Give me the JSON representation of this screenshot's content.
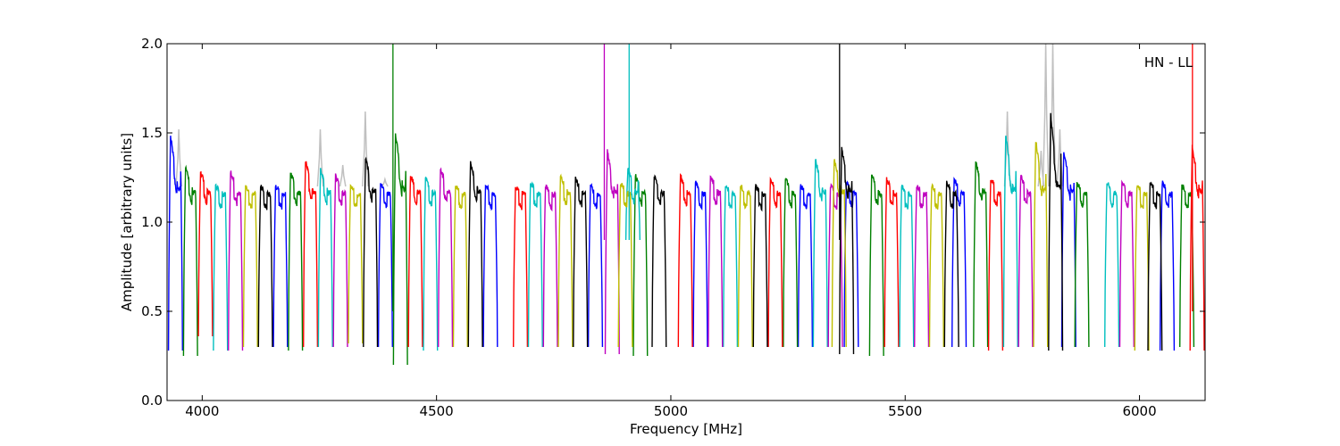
{
  "chart_data": {
    "type": "line",
    "title": "",
    "annotation": "HN - LL",
    "xlabel": "Frequency [MHz]",
    "ylabel": "Amplitude [arbitrary units]",
    "xlim": [
      3925,
      6140
    ],
    "ylim": [
      0.0,
      2.0
    ],
    "xticks": [
      4000,
      4500,
      5000,
      5500,
      6000
    ],
    "xtick_labels": [
      "4000",
      "4500",
      "5000",
      "5500",
      "6000"
    ],
    "yticks": [
      0.0,
      0.5,
      1.0,
      1.5,
      2.0
    ],
    "ytick_labels": [
      "0.0",
      "0.5",
      "1.0",
      "1.5",
      "2.0"
    ],
    "grid": false,
    "color_cycle": [
      "#0000ff",
      "#008000",
      "#ff0000",
      "#00bfbf",
      "#bf00bf",
      "#bfbf00",
      "#000000"
    ],
    "background_trace_color": "#c0c0c0",
    "channel_spacing_mhz": 32,
    "channel_width_mhz": 30,
    "series": [
      {
        "color": "#0000ff",
        "channels": [
          [
            3928,
            3958,
            0.28,
            1.48
          ],
          [
            4152,
            4182,
            0.3,
            1.2
          ],
          [
            4376,
            4406,
            0.3,
            1.22
          ],
          [
            4600,
            4630,
            0.3,
            1.2
          ],
          [
            4824,
            4854,
            0.3,
            1.2
          ],
          [
            5048,
            5078,
            0.3,
            1.22
          ],
          [
            5272,
            5302,
            0.3,
            1.2
          ],
          [
            5370,
            5400,
            0.3,
            1.22
          ],
          [
            5600,
            5630,
            0.3,
            1.24
          ],
          [
            5834,
            5864,
            0.3,
            1.4
          ],
          [
            6044,
            6074,
            0.28,
            1.22
          ]
        ]
      },
      {
        "color": "#008000",
        "channels": [
          [
            3960,
            3990,
            0.25,
            1.3
          ],
          [
            4184,
            4214,
            0.28,
            1.28
          ],
          [
            4408,
            4438,
            0.2,
            1.5
          ],
          [
            4920,
            4950,
            0.25,
            1.26
          ],
          [
            5240,
            5270,
            0.3,
            1.24
          ],
          [
            5424,
            5454,
            0.25,
            1.26
          ],
          [
            5646,
            5676,
            0.3,
            1.34
          ],
          [
            5862,
            5892,
            0.3,
            1.22
          ],
          [
            6086,
            6116,
            0.3,
            1.2
          ]
        ]
      },
      {
        "color": "#ff0000",
        "channels": [
          [
            3992,
            4022,
            0.36,
            1.28
          ],
          [
            4216,
            4246,
            0.3,
            1.34
          ],
          [
            4440,
            4470,
            0.3,
            1.26
          ],
          [
            4664,
            4694,
            0.3,
            1.2
          ],
          [
            5016,
            5046,
            0.3,
            1.26
          ],
          [
            5208,
            5238,
            0.3,
            1.24
          ],
          [
            5456,
            5486,
            0.3,
            1.24
          ],
          [
            5678,
            5708,
            0.28,
            1.25
          ],
          [
            6108,
            6138,
            0.28,
            1.42
          ]
        ]
      },
      {
        "color": "#00bfbf",
        "channels": [
          [
            4024,
            4054,
            0.28,
            1.2
          ],
          [
            4248,
            4278,
            0.3,
            1.3
          ],
          [
            4472,
            4502,
            0.28,
            1.24
          ],
          [
            4696,
            4726,
            0.3,
            1.22
          ],
          [
            4904,
            4934,
            0.9,
            1.3
          ],
          [
            5112,
            5142,
            0.3,
            1.2
          ],
          [
            5304,
            5334,
            0.3,
            1.35
          ],
          [
            5488,
            5518,
            0.3,
            1.2
          ],
          [
            5710,
            5740,
            0.3,
            1.48
          ],
          [
            5926,
            5956,
            0.3,
            1.22
          ]
        ]
      },
      {
        "color": "#bf00bf",
        "channels": [
          [
            4056,
            4086,
            0.28,
            1.28
          ],
          [
            4280,
            4310,
            0.3,
            1.26
          ],
          [
            4504,
            4534,
            0.3,
            1.3
          ],
          [
            4728,
            4758,
            0.3,
            1.2
          ],
          [
            4860,
            4890,
            0.26,
            1.4
          ],
          [
            5080,
            5110,
            0.3,
            1.26
          ],
          [
            5336,
            5366,
            0.3,
            1.2
          ],
          [
            5520,
            5550,
            0.3,
            1.2
          ],
          [
            5742,
            5772,
            0.3,
            1.26
          ],
          [
            5958,
            5988,
            0.3,
            1.22
          ]
        ]
      },
      {
        "color": "#bfbf00",
        "channels": [
          [
            4088,
            4118,
            0.3,
            1.2
          ],
          [
            4312,
            4342,
            0.32,
            1.2
          ],
          [
            4536,
            4566,
            0.3,
            1.2
          ],
          [
            4760,
            4790,
            0.3,
            1.26
          ],
          [
            4888,
            4918,
            0.3,
            1.22
          ],
          [
            5144,
            5174,
            0.3,
            1.2
          ],
          [
            5344,
            5374,
            0.3,
            1.35
          ],
          [
            5552,
            5582,
            0.3,
            1.2
          ],
          [
            5774,
            5804,
            0.3,
            1.46
          ],
          [
            5990,
            6020,
            0.28,
            1.2
          ]
        ]
      },
      {
        "color": "#000000",
        "channels": [
          [
            4120,
            4150,
            0.3,
            1.2
          ],
          [
            4344,
            4374,
            0.3,
            1.36
          ],
          [
            4568,
            4598,
            0.3,
            1.34
          ],
          [
            4792,
            4822,
            0.3,
            1.24
          ],
          [
            4960,
            4990,
            0.3,
            1.26
          ],
          [
            5176,
            5206,
            0.3,
            1.2
          ],
          [
            5360,
            5390,
            0.26,
            1.42
          ],
          [
            5584,
            5614,
            0.3,
            1.22
          ],
          [
            5806,
            5836,
            0.28,
            1.6
          ],
          [
            6018,
            6048,
            0.28,
            1.22
          ]
        ]
      }
    ],
    "spikes": [
      {
        "x": 4407,
        "y0": 0.5,
        "y1": 2.0,
        "color": "#008000"
      },
      {
        "x": 4858,
        "y0": 0.9,
        "y1": 2.0,
        "color": "#bf00bf"
      },
      {
        "x": 4911,
        "y0": 0.9,
        "y1": 2.0,
        "color": "#00bfbf"
      },
      {
        "x": 5360,
        "y0": 0.9,
        "y1": 2.0,
        "color": "#000000"
      },
      {
        "x": 6113,
        "y0": 0.5,
        "y1": 2.0,
        "color": "#ff0000"
      }
    ],
    "background_peaks": [
      {
        "x": 3950,
        "y": 1.52
      },
      {
        "x": 4252,
        "y": 1.52
      },
      {
        "x": 4300,
        "y": 1.32
      },
      {
        "x": 4348,
        "y": 1.62
      },
      {
        "x": 4390,
        "y": 1.24
      },
      {
        "x": 5718,
        "y": 1.62
      },
      {
        "x": 5790,
        "y": 1.4
      },
      {
        "x": 5800,
        "y": 2.0
      },
      {
        "x": 5815,
        "y": 2.0
      },
      {
        "x": 5830,
        "y": 1.52
      }
    ]
  }
}
